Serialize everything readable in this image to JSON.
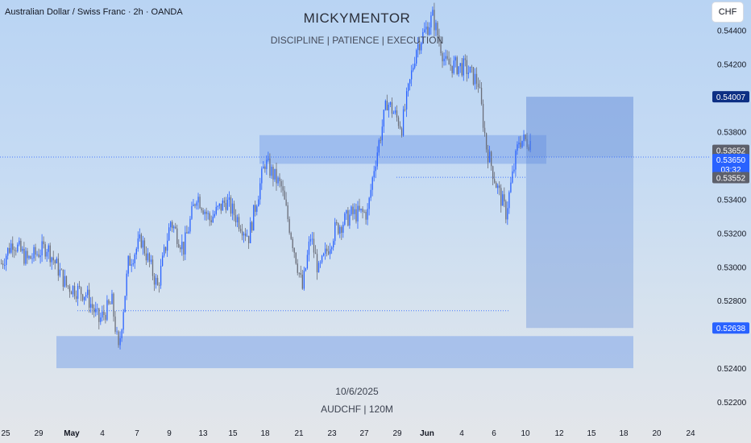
{
  "header": {
    "symbol_line": "Australian Dollar / Swiss Franc · 2h · OANDA"
  },
  "watermark": {
    "title": "MICKYMENTOR",
    "subtitle": "DISCIPLINE | PATIENCE | EXECUTION",
    "date": "10/6/2025",
    "symbol": "AUDCHF | 120M"
  },
  "currency_button": "CHF",
  "colors": {
    "up": "#2962ff",
    "down": "#6a6d78",
    "zone": "#7fa6ea",
    "box": "#5b86d8",
    "stop_label": "#0d2f84",
    "target_label": "#2962ff",
    "price_label": "#2962ff",
    "gray_label": "#5d606b"
  },
  "price_labels": [
    {
      "role": "target",
      "text": "0.54007"
    },
    {
      "role": "ask",
      "text": "0.53652"
    },
    {
      "role": "last",
      "text": "0.53650",
      "countdown": "03:32"
    },
    {
      "role": "bid",
      "text": "0.53552"
    },
    {
      "role": "stop",
      "text": "0.52638"
    }
  ],
  "chart_data": {
    "type": "candlestick",
    "interval": "2h",
    "ylim": [
      0.521,
      0.5458
    ],
    "y_ticks": [
      "0.54400",
      "0.54200",
      "0.53800",
      "0.53400",
      "0.53200",
      "0.53000",
      "0.52800",
      "0.52400",
      "0.52200"
    ],
    "x_ticks": [
      "25",
      "29",
      "May",
      "4",
      "7",
      "9",
      "13",
      "15",
      "18",
      "21",
      "23",
      "27",
      "29",
      "Jun",
      "4",
      "6",
      "10",
      "12",
      "15",
      "18",
      "20",
      "24"
    ],
    "x_tick_positions": [
      7,
      48,
      89,
      127,
      170,
      210,
      252,
      289,
      329,
      371,
      412,
      452,
      493,
      530,
      573,
      613,
      652,
      694,
      734,
      774,
      815,
      857
    ],
    "path_bars": 325,
    "path_anchors": [
      [
        0,
        0.5302
      ],
      [
        7,
        0.5315
      ],
      [
        16,
        0.5304
      ],
      [
        28,
        0.5312
      ],
      [
        40,
        0.5289
      ],
      [
        52,
        0.5284
      ],
      [
        60,
        0.5268
      ],
      [
        68,
        0.5279
      ],
      [
        72,
        0.525
      ],
      [
        78,
        0.5302
      ],
      [
        86,
        0.5316
      ],
      [
        96,
        0.5288
      ],
      [
        104,
        0.5327
      ],
      [
        112,
        0.5311
      ],
      [
        120,
        0.5343
      ],
      [
        128,
        0.5328
      ],
      [
        138,
        0.5339
      ],
      [
        152,
        0.5318
      ],
      [
        162,
        0.5362
      ],
      [
        172,
        0.5347
      ],
      [
        177,
        0.5324
      ],
      [
        185,
        0.5287
      ],
      [
        190,
        0.5318
      ],
      [
        195,
        0.5297
      ],
      [
        205,
        0.5322
      ],
      [
        215,
        0.5331
      ],
      [
        225,
        0.5332
      ],
      [
        229,
        0.5359
      ],
      [
        237,
        0.5398
      ],
      [
        246,
        0.5383
      ],
      [
        255,
        0.543
      ],
      [
        265,
        0.5448
      ],
      [
        273,
        0.542
      ],
      [
        285,
        0.5418
      ],
      [
        293,
        0.5409
      ],
      [
        298,
        0.5371
      ],
      [
        304,
        0.5349
      ],
      [
        310,
        0.5332
      ],
      [
        318,
        0.5375
      ],
      [
        328,
        0.5374
      ],
      [
        338,
        0.5381
      ],
      [
        346,
        0.5388
      ],
      [
        352,
        0.5373
      ],
      [
        358,
        0.5337
      ],
      [
        366,
        0.5314
      ],
      [
        376,
        0.5305
      ],
      [
        390,
        0.5316
      ],
      [
        404,
        0.5309
      ],
      [
        418,
        0.5306
      ],
      [
        426,
        0.5328
      ],
      [
        436,
        0.5347
      ],
      [
        444,
        0.5319
      ],
      [
        452,
        0.5323
      ],
      [
        460,
        0.5313
      ],
      [
        470,
        0.5338
      ],
      [
        482,
        0.5313
      ],
      [
        488,
        0.5338
      ],
      [
        494,
        0.5348
      ],
      [
        500,
        0.531
      ],
      [
        508,
        0.5295
      ],
      [
        516,
        0.5287
      ],
      [
        522,
        0.5281
      ],
      [
        530,
        0.5301
      ],
      [
        536,
        0.5284
      ],
      [
        542,
        0.5305
      ],
      [
        551,
        0.5297
      ],
      [
        557,
        0.5278
      ],
      [
        562,
        0.5301
      ],
      [
        568,
        0.5326
      ],
      [
        575,
        0.5322
      ],
      [
        582,
        0.5331
      ],
      [
        588,
        0.5319
      ],
      [
        594,
        0.5315
      ],
      [
        600,
        0.5334
      ],
      [
        606,
        0.5345
      ],
      [
        612,
        0.5334
      ],
      [
        620,
        0.5338
      ],
      [
        628,
        0.5341
      ],
      [
        636,
        0.5346
      ],
      [
        644,
        0.5352
      ],
      [
        650,
        0.5355
      ],
      [
        656,
        0.5365
      ]
    ],
    "zones": [
      {
        "name": "supply-zone",
        "from_x": 322,
        "to_x": 678,
        "top": 0.5378,
        "bottom": 0.5361
      },
      {
        "name": "demand-zone",
        "from_x": 70,
        "to_x": 786,
        "top": 0.5259,
        "bottom": 0.524
      }
    ],
    "dotted_levels": [
      {
        "name": "range-high",
        "from_x": 492,
        "to_x": 654,
        "y": 0.5353
      },
      {
        "name": "range-low",
        "from_x": 96,
        "to_x": 632,
        "y": 0.5274
      }
    ],
    "position": {
      "side": "long",
      "entry": 0.5365,
      "target": 0.54007,
      "stop": 0.52638,
      "from_x": 653,
      "to_x": 786
    },
    "last_price": 0.5365
  }
}
